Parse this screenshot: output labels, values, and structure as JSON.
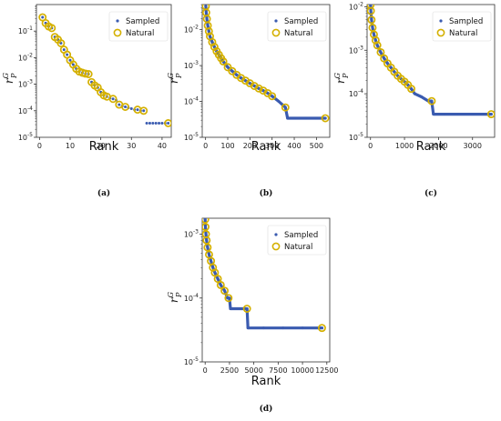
{
  "legend": {
    "sampled": "Sampled",
    "natural": "Natural"
  },
  "colors": {
    "sampled": "#3a5bb0",
    "natural": "#d4b000",
    "axis": "#333333"
  },
  "chart_data": [
    {
      "type": "scatter",
      "panel_label": "(a)",
      "xlabel": "Rank",
      "ylabel_main": "r",
      "ylabel_sup": "G",
      "ylabel_sub": "P",
      "x_scale": "linear",
      "y_scale": "log",
      "xlim": [
        -1,
        43
      ],
      "ylim_exp": [
        -5,
        0
      ],
      "x_ticks": [
        0,
        10,
        20,
        30,
        40
      ],
      "x_tick_labels": [
        "0",
        "10",
        "20",
        "30",
        "40"
      ],
      "y_ticks_exp": [
        -5,
        -4,
        -3,
        -2,
        -1
      ],
      "y_tick_labels": [
        [
          "10",
          "-5"
        ],
        [
          "10",
          "-4"
        ],
        [
          "10",
          "-3"
        ],
        [
          "10",
          "-2"
        ],
        [
          "10",
          "-1"
        ]
      ],
      "legend_position": "top-right",
      "grid": false,
      "series": [
        {
          "name": "Sampled",
          "marker": "dot",
          "x": [
            1,
            2,
            3,
            4,
            5,
            6,
            7,
            8,
            9,
            10,
            11,
            12,
            13,
            14,
            15,
            16,
            17,
            18,
            19,
            20,
            21,
            22,
            23,
            24,
            25,
            26,
            27,
            28,
            29,
            30,
            31,
            32,
            33,
            34,
            35,
            36,
            37,
            38,
            39,
            40,
            41,
            42
          ],
          "y": [
            0.33,
            0.2,
            0.15,
            0.13,
            0.06,
            0.048,
            0.035,
            0.02,
            0.013,
            0.008,
            0.0055,
            0.0038,
            0.003,
            0.0027,
            0.0025,
            0.0024,
            0.0012,
            0.0009,
            0.00075,
            0.0005,
            0.00038,
            0.00034,
            0.0003,
            0.00028,
            0.00025,
            0.00017,
            0.00015,
            0.00014,
            0.00013,
            0.00012,
            0.00011,
            0.00011,
            0.0001,
            0.0001,
            3.4e-05,
            3.4e-05,
            3.4e-05,
            3.4e-05,
            3.4e-05,
            3.4e-05,
            3.4e-05,
            3.4e-05
          ]
        },
        {
          "name": "Natural",
          "marker": "ring",
          "x": [
            1,
            2,
            3,
            4,
            5,
            6,
            7,
            8,
            9,
            10,
            11,
            12,
            13,
            14,
            15,
            16,
            17,
            18,
            19,
            20,
            21,
            22,
            24,
            26,
            28,
            32,
            34,
            42
          ],
          "y": [
            0.33,
            0.2,
            0.15,
            0.13,
            0.06,
            0.048,
            0.035,
            0.02,
            0.013,
            0.008,
            0.0055,
            0.0038,
            0.003,
            0.0027,
            0.0025,
            0.0024,
            0.0012,
            0.0009,
            0.00075,
            0.0005,
            0.00038,
            0.00034,
            0.00028,
            0.00017,
            0.00014,
            0.00011,
            0.0001,
            3.4e-05
          ]
        }
      ]
    },
    {
      "type": "scatter",
      "panel_label": "(b)",
      "xlabel": "Rank",
      "ylabel_main": "r",
      "ylabel_sup": "G",
      "ylabel_sub": "P",
      "x_scale": "linear",
      "y_scale": "log",
      "xlim": [
        -15,
        560
      ],
      "ylim_exp": [
        -5,
        -1.3
      ],
      "x_ticks": [
        0,
        100,
        200,
        300,
        400,
        500
      ],
      "x_tick_labels": [
        "0",
        "100",
        "200",
        "300",
        "400",
        "500"
      ],
      "y_ticks_exp": [
        -5,
        -4,
        -3,
        -2
      ],
      "y_tick_labels": [
        [
          "10",
          "-5"
        ],
        [
          "10",
          "-4"
        ],
        [
          "10",
          "-3"
        ],
        [
          "10",
          "-2"
        ]
      ],
      "legend_position": "top-right",
      "grid": false,
      "series": [
        {
          "name": "Sampled",
          "marker": "dot",
          "style": "dense",
          "x": [
            1,
            3,
            6,
            10,
            15,
            20,
            30,
            40,
            50,
            60,
            70,
            80,
            100,
            120,
            140,
            160,
            180,
            200,
            220,
            240,
            260,
            280,
            300,
            330,
            360,
            370,
            400,
            450,
            500,
            540
          ],
          "y": [
            0.045,
            0.03,
            0.02,
            0.013,
            0.009,
            0.0065,
            0.0045,
            0.0033,
            0.0025,
            0.002,
            0.0016,
            0.0013,
            0.0009,
            0.0007,
            0.00055,
            0.00045,
            0.00038,
            0.00032,
            0.00027,
            0.00023,
            0.0002,
            0.00017,
            0.00014,
            0.0001,
            6.8e-05,
            3.4e-05,
            3.4e-05,
            3.4e-05,
            3.4e-05,
            3.4e-05
          ]
        },
        {
          "name": "Natural",
          "marker": "ring",
          "x": [
            1,
            3,
            6,
            10,
            15,
            20,
            30,
            40,
            50,
            60,
            70,
            80,
            100,
            120,
            140,
            160,
            180,
            200,
            220,
            240,
            260,
            280,
            300,
            360,
            540
          ],
          "y": [
            0.045,
            0.03,
            0.02,
            0.013,
            0.009,
            0.0065,
            0.0045,
            0.0033,
            0.0025,
            0.002,
            0.0016,
            0.0013,
            0.0009,
            0.0007,
            0.00055,
            0.00045,
            0.00038,
            0.00032,
            0.00027,
            0.00023,
            0.0002,
            0.00017,
            0.00014,
            6.8e-05,
            3.4e-05
          ]
        }
      ]
    },
    {
      "type": "scatter",
      "panel_label": "(c)",
      "xlabel": "Rank",
      "ylabel_main": "r",
      "ylabel_sup": "G",
      "ylabel_sub": "P",
      "x_scale": "linear",
      "y_scale": "log",
      "xlim": [
        -100,
        3650
      ],
      "ylim_exp": [
        -5,
        -1.95
      ],
      "x_ticks": [
        0,
        1000,
        2000,
        3000
      ],
      "x_tick_labels": [
        "0",
        "1000",
        "2000",
        "3000"
      ],
      "y_ticks_exp": [
        -5,
        -4,
        -3,
        -2
      ],
      "y_tick_labels": [
        [
          "10",
          "-5"
        ],
        [
          "10",
          "-4"
        ],
        [
          "10",
          "-3"
        ],
        [
          "10",
          "-2"
        ]
      ],
      "legend_position": "top-right",
      "grid": false,
      "series": [
        {
          "name": "Sampled",
          "marker": "dot",
          "style": "dense",
          "x": [
            1,
            10,
            30,
            60,
            100,
            150,
            200,
            300,
            400,
            500,
            600,
            700,
            800,
            900,
            1000,
            1100,
            1200,
            1300,
            1500,
            1700,
            1800,
            1850,
            2200,
            2600,
            3000,
            3400,
            3550
          ],
          "y": [
            0.011,
            0.008,
            0.005,
            0.0033,
            0.0023,
            0.0017,
            0.0013,
            0.0009,
            0.00065,
            0.0005,
            0.0004,
            0.00032,
            0.00026,
            0.00022,
            0.00019,
            0.00016,
            0.00013,
            0.0001,
            8.5e-05,
            6.8e-05,
            6.8e-05,
            3.4e-05,
            3.4e-05,
            3.4e-05,
            3.4e-05,
            3.4e-05,
            3.4e-05
          ]
        },
        {
          "name": "Natural",
          "marker": "ring",
          "x": [
            1,
            10,
            30,
            60,
            100,
            150,
            200,
            300,
            400,
            500,
            600,
            700,
            800,
            900,
            1000,
            1100,
            1200,
            1800,
            3550
          ],
          "y": [
            0.011,
            0.008,
            0.005,
            0.0033,
            0.0023,
            0.0017,
            0.0013,
            0.0009,
            0.00065,
            0.0005,
            0.0004,
            0.00032,
            0.00026,
            0.00022,
            0.00019,
            0.00016,
            0.00013,
            6.8e-05,
            3.4e-05
          ]
        }
      ]
    },
    {
      "type": "scatter",
      "panel_label": "(d)",
      "xlabel": "Rank",
      "ylabel_main": "r",
      "ylabel_sup": "G",
      "ylabel_sub": "P",
      "x_scale": "linear",
      "y_scale": "log",
      "xlim": [
        -300,
        12800
      ],
      "ylim_exp": [
        -5,
        -2.75
      ],
      "x_ticks": [
        0,
        2500,
        5000,
        7500,
        10000,
        12500
      ],
      "x_tick_labels": [
        "0",
        "2500",
        "5000",
        "7500",
        "10000",
        "12500"
      ],
      "y_ticks_exp": [
        -5,
        -4,
        -3
      ],
      "y_tick_labels": [
        [
          "10",
          "-5"
        ],
        [
          "10",
          "-4"
        ],
        [
          "10",
          "-3"
        ]
      ],
      "legend_position": "top-right",
      "grid": false,
      "series": [
        {
          "name": "Sampled",
          "marker": "dot",
          "style": "dense",
          "x": [
            1,
            30,
            80,
            150,
            250,
            400,
            600,
            800,
            1000,
            1300,
            1600,
            2000,
            2300,
            2500,
            2600,
            3000,
            3600,
            4300,
            4400,
            6000,
            8000,
            10000,
            12000
          ],
          "y": [
            0.0017,
            0.0013,
            0.001,
            0.0008,
            0.00062,
            0.00048,
            0.00038,
            0.0003,
            0.00025,
            0.0002,
            0.00016,
            0.00013,
            0.0001,
            0.0001,
            6.8e-05,
            6.8e-05,
            6.8e-05,
            6.8e-05,
            3.4e-05,
            3.4e-05,
            3.4e-05,
            3.4e-05,
            3.4e-05
          ]
        },
        {
          "name": "Natural",
          "marker": "ring",
          "x": [
            1,
            30,
            80,
            150,
            250,
            400,
            600,
            800,
            1000,
            1300,
            1600,
            2000,
            2400,
            4300,
            12000
          ],
          "y": [
            0.0017,
            0.0013,
            0.001,
            0.0008,
            0.00062,
            0.00048,
            0.00038,
            0.0003,
            0.00025,
            0.0002,
            0.00016,
            0.00013,
            0.0001,
            6.8e-05,
            3.4e-05
          ]
        }
      ]
    }
  ]
}
